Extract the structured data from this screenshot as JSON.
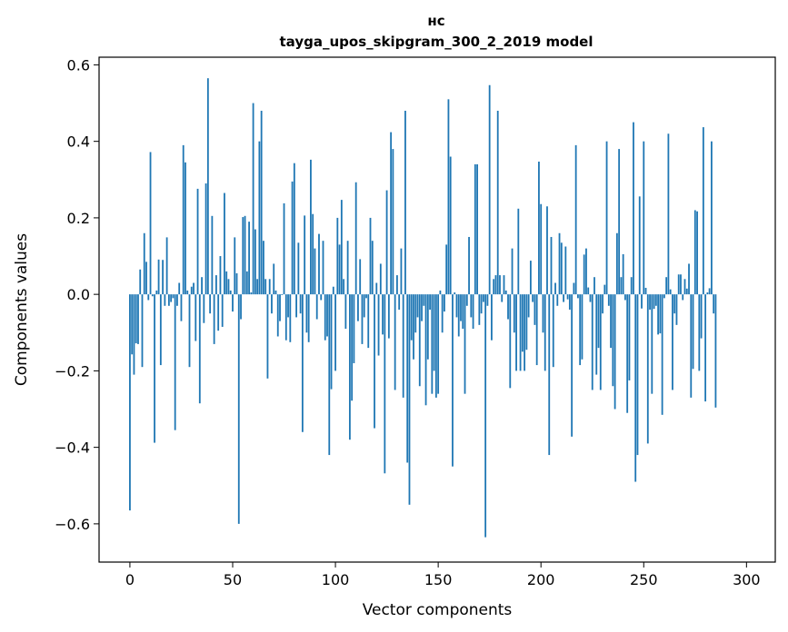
{
  "chart_data": {
    "type": "bar",
    "title": "нс",
    "subtitle": "tayga_upos_skipgram_300_2_2019 model",
    "xlabel": "Vector components",
    "ylabel": "Components values",
    "xlim": [
      -15,
      314
    ],
    "ylim": [
      -0.7,
      0.62
    ],
    "x_ticks": [
      0,
      50,
      100,
      150,
      200,
      250,
      300
    ],
    "y_ticks": [
      -0.6,
      -0.4,
      -0.2,
      0.0,
      0.2,
      0.4,
      0.6
    ],
    "x_tick_labels": [
      "0",
      "50",
      "100",
      "150",
      "200",
      "250",
      "300"
    ],
    "y_tick_labels": [
      "−0.6",
      "−0.4",
      "−0.2",
      "0.0",
      "0.2",
      "0.4",
      "0.6"
    ],
    "grid": false,
    "bar_color": "#1f77b4",
    "values": [
      -0.565,
      -0.157,
      -0.21,
      -0.128,
      -0.13,
      0.065,
      -0.19,
      0.16,
      0.085,
      -0.015,
      0.372,
      -0.005,
      -0.388,
      0.01,
      0.091,
      -0.185,
      0.09,
      -0.03,
      0.149,
      -0.03,
      -0.02,
      -0.01,
      -0.355,
      -0.03,
      0.03,
      -0.07,
      0.39,
      0.345,
      0.01,
      -0.19,
      0.02,
      0.03,
      -0.122,
      0.276,
      -0.285,
      0.045,
      -0.075,
      0.29,
      0.565,
      -0.05,
      0.205,
      -0.13,
      0.05,
      -0.095,
      0.1,
      -0.085,
      0.265,
      0.06,
      0.04,
      0.01,
      -0.045,
      0.149,
      0.055,
      -0.6,
      -0.065,
      0.202,
      0.205,
      0.06,
      0.19,
      0.005,
      0.5,
      0.17,
      0.04,
      0.4,
      0.48,
      0.14,
      0.04,
      -0.22,
      0.04,
      -0.05,
      0.08,
      0.01,
      -0.11,
      -0.07,
      -0.002,
      0.238,
      -0.12,
      -0.06,
      -0.125,
      0.295,
      0.343,
      -0.06,
      0.135,
      -0.05,
      -0.36,
      0.206,
      -0.1,
      -0.125,
      0.352,
      0.21,
      0.12,
      -0.065,
      0.158,
      -0.015,
      0.14,
      -0.12,
      -0.11,
      -0.42,
      -0.248,
      0.02,
      -0.2,
      0.2,
      0.13,
      0.247,
      0.04,
      -0.09,
      0.14,
      -0.38,
      -0.278,
      -0.18,
      0.293,
      -0.07,
      0.092,
      -0.13,
      -0.06,
      -0.01,
      -0.14,
      0.2,
      0.14,
      -0.35,
      0.03,
      -0.16,
      0.08,
      -0.105,
      -0.468,
      0.272,
      -0.115,
      0.424,
      0.38,
      -0.25,
      0.05,
      -0.04,
      0.12,
      -0.27,
      0.48,
      -0.44,
      -0.55,
      -0.12,
      -0.17,
      -0.1,
      -0.06,
      -0.24,
      -0.07,
      -0.03,
      -0.29,
      -0.17,
      -0.04,
      -0.26,
      -0.2,
      -0.27,
      -0.26,
      0.01,
      -0.1,
      -0.045,
      0.13,
      0.51,
      0.36,
      -0.45,
      0.005,
      -0.06,
      -0.11,
      -0.07,
      -0.09,
      -0.26,
      -0.03,
      0.15,
      -0.06,
      -0.09,
      0.34,
      0.34,
      -0.08,
      -0.05,
      -0.02,
      -0.635,
      -0.03,
      0.547,
      -0.12,
      0.04,
      0.05,
      0.48,
      0.05,
      -0.02,
      0.05,
      0.01,
      -0.065,
      -0.245,
      0.12,
      -0.1,
      -0.2,
      0.224,
      -0.2,
      -0.15,
      -0.2,
      -0.145,
      -0.06,
      0.088,
      -0.02,
      -0.08,
      -0.185,
      0.347,
      0.236,
      -0.1,
      -0.2,
      0.23,
      -0.42,
      0.15,
      -0.19,
      0.03,
      -0.03,
      0.16,
      0.135,
      -0.02,
      0.125,
      -0.013,
      -0.04,
      -0.372,
      0.03,
      0.39,
      -0.01,
      -0.185,
      -0.17,
      0.104,
      0.12,
      0.018,
      -0.02,
      -0.25,
      0.045,
      -0.21,
      -0.14,
      -0.25,
      -0.05,
      0.025,
      0.4,
      -0.03,
      -0.14,
      -0.24,
      -0.3,
      0.16,
      0.38,
      0.045,
      0.105,
      -0.015,
      -0.31,
      -0.225,
      0.045,
      0.45,
      -0.49,
      -0.42,
      0.256,
      -0.037,
      0.4,
      0.017,
      -0.39,
      -0.04,
      -0.26,
      -0.038,
      -0.03,
      -0.105,
      -0.102,
      -0.315,
      -0.01,
      0.045,
      0.42,
      0.013,
      -0.25,
      -0.05,
      -0.08,
      0.052,
      0.052,
      -0.015,
      0.04,
      0.015,
      0.08,
      -0.27,
      -0.195,
      0.22,
      0.217,
      -0.2,
      -0.115,
      0.437,
      -0.28,
      0.005,
      0.016,
      0.4,
      -0.05,
      -0.296
    ],
    "x": "bar index = 0..N-1 (one bar per vector component)"
  }
}
